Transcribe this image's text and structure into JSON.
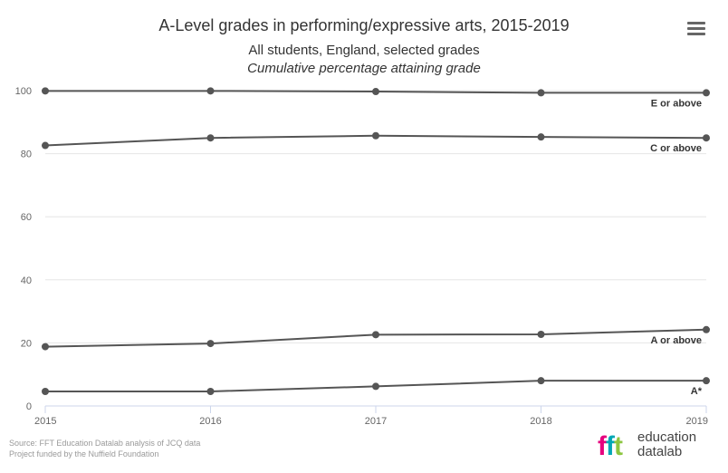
{
  "header": {
    "title": "A-Level grades in performing/expressive arts, 2015-2019",
    "subtitle1": "All students, England, selected grades",
    "subtitle2": "Cumulative percentage attaining grade"
  },
  "menu": {
    "icon": "hamburger-menu-icon"
  },
  "chart_data": {
    "type": "line",
    "title": "A-Level grades in performing/expressive arts, 2015-2019",
    "x": [
      "2015",
      "2016",
      "2017",
      "2018",
      "2019"
    ],
    "xlim": [
      2015,
      2019
    ],
    "ylim": [
      0,
      100
    ],
    "yticks": [
      0,
      20,
      40,
      60,
      80,
      100
    ],
    "grid": true,
    "line_color": "#555555",
    "series": [
      {
        "name": "E or above",
        "values": [
          99.9,
          99.9,
          99.7,
          99.3,
          99.3
        ]
      },
      {
        "name": "C or above",
        "values": [
          82.6,
          85.0,
          85.7,
          85.3,
          85.0
        ]
      },
      {
        "name": "A or above",
        "values": [
          18.8,
          19.8,
          22.6,
          22.7,
          24.2
        ]
      },
      {
        "name": "A*",
        "values": [
          4.6,
          4.6,
          6.2,
          8.0,
          8.0
        ]
      }
    ]
  },
  "credits": {
    "source": "Source: FFT Education Datalab analysis of JCQ data",
    "funding": "Project funded by the Nuffield Foundation"
  },
  "logo": {
    "mark": "fft",
    "line1": "education",
    "line2": "datalab"
  }
}
